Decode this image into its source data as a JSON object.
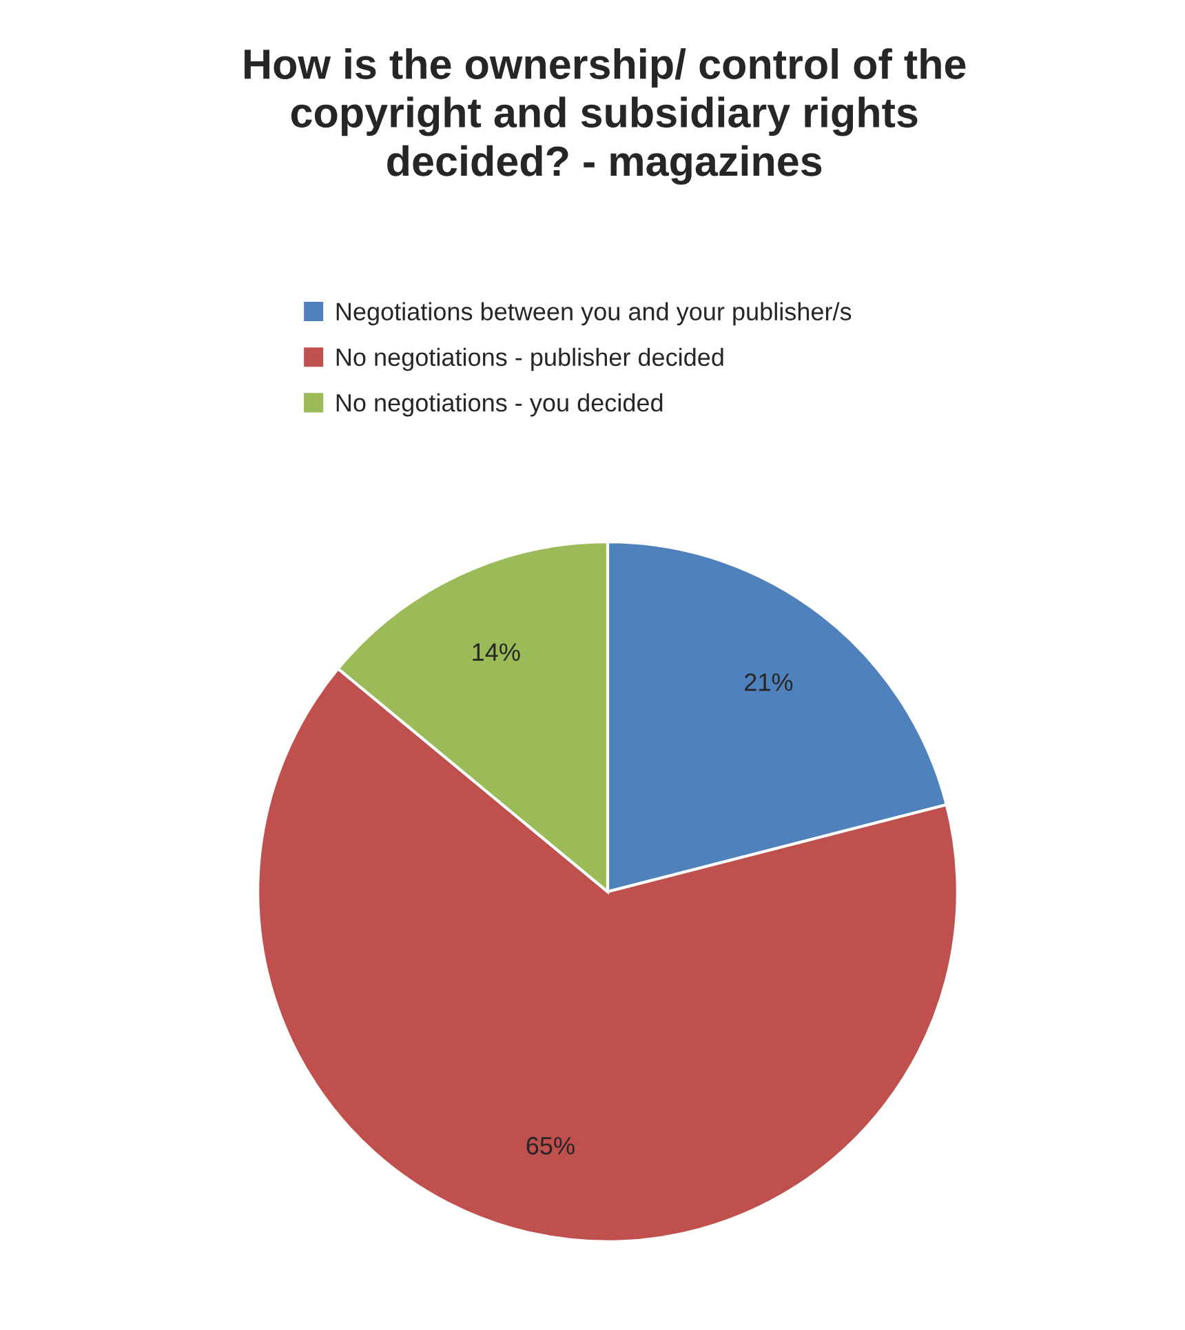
{
  "chart_data": {
    "type": "pie",
    "title": "How is the ownership/ control of the\ncopyright and subsidiary rights\ndecided? - magazines",
    "categories": [
      "Negotiations between you and your publisher/s",
      "No negotiations - publisher decided",
      "No negotiations - you decided"
    ],
    "values": [
      21,
      65,
      14
    ],
    "colors": [
      "#4f81bd",
      "#c0504d",
      "#9bbb59"
    ],
    "value_labels": [
      "21%",
      "65%",
      "14%"
    ],
    "legend": "top"
  }
}
